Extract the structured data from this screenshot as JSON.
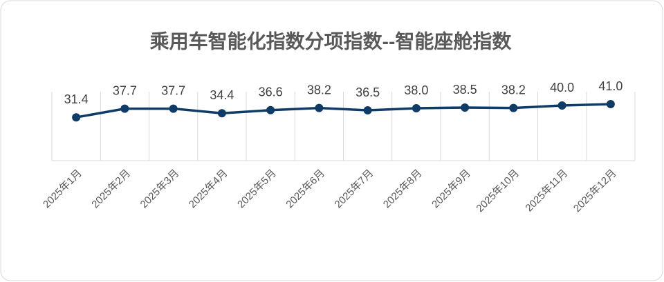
{
  "chart_data": {
    "type": "line",
    "title": "乘用车智能化指数分项指数--智能座舱指数",
    "categories": [
      "2025年1月",
      "2025年2月",
      "2025年3月",
      "2025年4月",
      "2025年5月",
      "2025年6月",
      "2025年7月",
      "2025年8月",
      "2025年9月",
      "2025年10月",
      "2025年11月",
      "2025年12月"
    ],
    "series": [
      {
        "color": "#0f3b66",
        "values": [
          31.4,
          37.7,
          37.7,
          34.4,
          36.6,
          38.2,
          36.5,
          38.0,
          38.5,
          38.2,
          40.0,
          41.0
        ],
        "value_labels": [
          "31.4",
          "37.7",
          "37.7",
          "34.4",
          "36.6",
          "38.2",
          "36.5",
          "38.0",
          "38.5",
          "38.2",
          "40.0",
          "41.0"
        ]
      }
    ],
    "ylim": [
      0,
      50
    ]
  }
}
